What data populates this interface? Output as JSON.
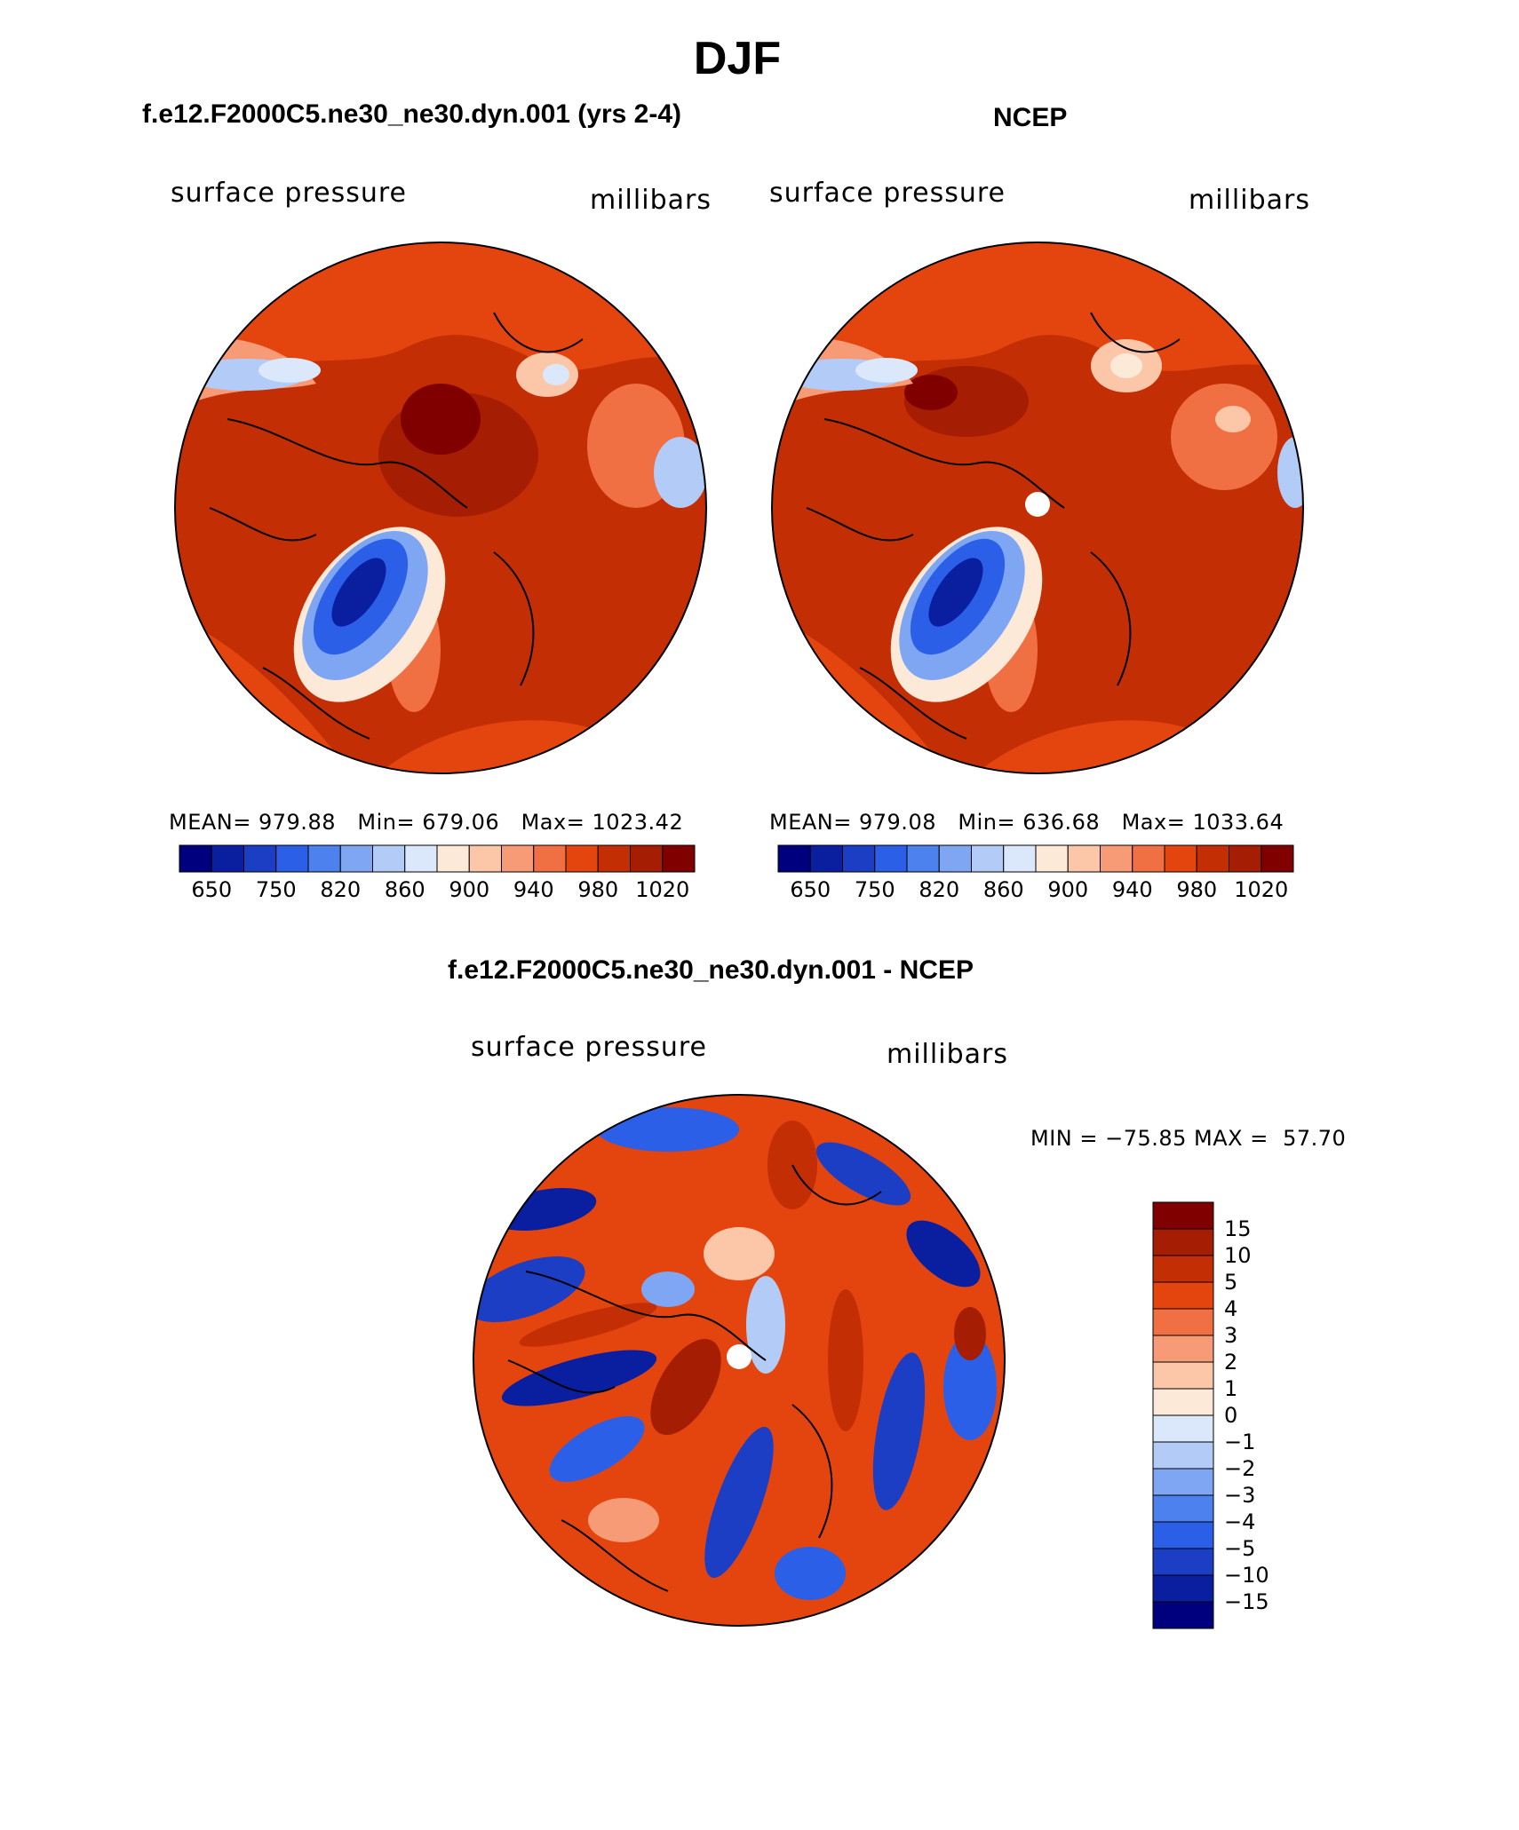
{
  "page": {
    "season_title": "DJF"
  },
  "panel_model": {
    "title": "f.e12.F2000C5.ne30_ne30.dyn.001 (yrs 2-4)",
    "left_label": "surface pressure",
    "right_label": "millibars",
    "stats": {
      "mean_label": "MEAN=",
      "mean": "979.88",
      "min_label": "Min=",
      "min": "679.06",
      "max_label": "Max=",
      "max": "1023.42"
    }
  },
  "panel_obs": {
    "title": "NCEP",
    "left_label": "surface pressure",
    "right_label": "millibars",
    "stats": {
      "mean_label": "MEAN=",
      "mean": "979.08",
      "min_label": "Min=",
      "min": "636.68",
      "max_label": "Max=",
      "max": "1033.64"
    }
  },
  "panel_diff": {
    "title": "f.e12.F2000C5.ne30_ne30.dyn.001 - NCEP",
    "left_label": "surface pressure",
    "right_label": "millibars",
    "minmax": "MIN = −75.85 MAX =  57.70"
  },
  "colorbar_abs": {
    "colors": [
      "#00007f",
      "#0a1fa0",
      "#1c3ec4",
      "#2b5fe8",
      "#4d82ee",
      "#7ea6f2",
      "#b2cbf7",
      "#dbe8fb",
      "#fde9d8",
      "#fbc7a8",
      "#f69b76",
      "#f06f43",
      "#e4450f",
      "#c42e05",
      "#a51d03",
      "#800000"
    ],
    "tick_labels": [
      "650",
      "750",
      "820",
      "860",
      "900",
      "940",
      "980",
      "1020"
    ]
  },
  "colorbar_diff": {
    "colors": [
      "#800000",
      "#a51d03",
      "#c42e05",
      "#e4450f",
      "#f06f43",
      "#f69b76",
      "#fbc7a8",
      "#fde9d8",
      "#dbe8fb",
      "#b2cbf7",
      "#7ea6f2",
      "#4d82ee",
      "#2b5fe8",
      "#1c3ec4",
      "#0a1fa0",
      "#00007f"
    ],
    "tick_labels": [
      "15",
      "10",
      "5",
      "4",
      "3",
      "2",
      "1",
      "0",
      "−1",
      "−2",
      "−3",
      "−4",
      "−5",
      "−10",
      "−15"
    ]
  }
}
